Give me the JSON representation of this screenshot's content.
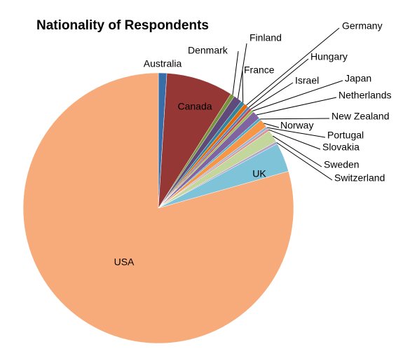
{
  "chart_data": {
    "type": "pie",
    "title": "Nationality of Respondents",
    "categories": [
      "Australia",
      "Canada",
      "Denmark",
      "Finland",
      "France",
      "Germany",
      "Hungary",
      "Israel",
      "Japan",
      "Netherlands",
      "New Zealand",
      "Norway",
      "Portugal",
      "Slovakia",
      "Sweden",
      "Switzerland",
      "UK",
      "USA"
    ],
    "values": [
      1,
      8,
      0.5,
      1,
      0.5,
      0.5,
      0.3,
      0.3,
      0.3,
      1,
      0.3,
      1,
      0.3,
      0.3,
      1.5,
      0.3,
      3.5,
      79.4
    ],
    "colors": [
      "#386da8",
      "#953735",
      "#77933c",
      "#604a7b",
      "#31859c",
      "#e46c0a",
      "#4f81bd",
      "#c0504d",
      "#9bbb59",
      "#8064a2",
      "#4bacc6",
      "#f79646",
      "#95b3d7",
      "#d99694",
      "#c3d69b",
      "#b3a2c7",
      "#7fc3d8",
      "#f8ab7a"
    ]
  }
}
